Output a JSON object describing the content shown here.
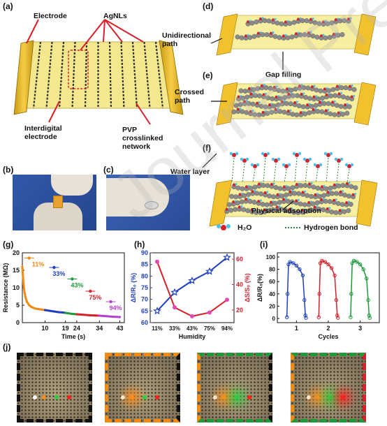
{
  "panels": {
    "a": "(a)",
    "b": "(b)",
    "c": "(c)",
    "d": "(d)",
    "e": "(e)",
    "f": "(f)",
    "g": "(g)",
    "h": "(h)",
    "i": "(i)",
    "j": "(j)"
  },
  "panel_a": {
    "electrode": "Electrode",
    "agnls": "AgNLs",
    "interdigital": "Interdigital electrode",
    "pvp": "PVP crosslinked network"
  },
  "panel_d": {
    "unidirectional": "Unidirectional path",
    "gap": "Gap filling"
  },
  "panel_e": {
    "crossed": "Crossed path"
  },
  "panel_f": {
    "water": "Water layer",
    "physical": "Physical adsorption"
  },
  "legend": {
    "h2o": "H₂O",
    "hbond": "Hydrogen bond"
  },
  "watermark": "Journal Pre-proof",
  "colors": {
    "gold": "#f2c12e",
    "film": "#f7efa0",
    "blue": "#1f3fbf",
    "red": "#d6202a",
    "green": "#1e9a3a",
    "orange": "#f08a10",
    "purple": "#b040d0"
  },
  "chart_data": [
    {
      "type": "line",
      "panel": "g",
      "ylabel": "Resistance (MΩ)",
      "xlabel": "Time (s)",
      "ylim": [
        0,
        20
      ],
      "yticks": [
        "0",
        "5",
        "10",
        "15",
        "20"
      ],
      "xticks": [
        "10",
        "19",
        "24",
        "34",
        "43"
      ],
      "annotations": [
        "11%",
        "33%",
        "43%",
        "75%",
        "94%"
      ],
      "series": [
        {
          "name": "11%",
          "color": "#f08a10",
          "x": [
            0,
            0.5,
            1,
            1.5,
            2,
            3,
            4,
            5,
            6,
            7,
            8,
            9,
            10
          ],
          "y": [
            16,
            11,
            8.5,
            7,
            6,
            5,
            4.5,
            4.2,
            4,
            3.9,
            3.8,
            3.7,
            3.6
          ]
        },
        {
          "name": "33%",
          "color": "#1f3fbf",
          "x": [
            10,
            12,
            14,
            16,
            18,
            19
          ],
          "y": [
            3.6,
            3.4,
            3.2,
            3.0,
            2.9,
            2.8
          ]
        },
        {
          "name": "43%",
          "color": "#1e9a3a",
          "x": [
            19,
            20,
            21,
            22,
            23,
            24
          ],
          "y": [
            2.8,
            2.7,
            2.6,
            2.5,
            2.45,
            2.4
          ]
        },
        {
          "name": "75%",
          "color": "#d6202a",
          "x": [
            24,
            26,
            28,
            30,
            32,
            34
          ],
          "y": [
            2.4,
            2.3,
            2.2,
            2.1,
            2.05,
            2.0
          ]
        },
        {
          "name": "94%",
          "color": "#b040d0",
          "x": [
            34,
            36,
            38,
            40,
            43
          ],
          "y": [
            2.0,
            1.9,
            1.8,
            1.7,
            1.6
          ]
        }
      ]
    },
    {
      "type": "line",
      "panel": "h",
      "xlabel": "Humidity",
      "ylabel_left": "ΔR/R₀ (%)",
      "ylabel_right": "ΔS/S₀ (%)",
      "categories": [
        "11%",
        "33%",
        "43%",
        "75%",
        "94%"
      ],
      "ylim_left": [
        60,
        90
      ],
      "yticks_left": [
        "60",
        "65",
        "70",
        "75",
        "80",
        "85",
        "90"
      ],
      "ylim_right": [
        10,
        65
      ],
      "yticks_right": [
        "20",
        "40",
        "60"
      ],
      "series": [
        {
          "name": "ΔR/R₀",
          "axis": "left",
          "color": "#1f3fbf",
          "values": [
            65,
            73,
            78,
            82,
            88
          ]
        },
        {
          "name": "ΔS/S₀",
          "axis": "right",
          "color": "#d6202a",
          "values": [
            58,
            22,
            15,
            18,
            28
          ]
        }
      ]
    },
    {
      "type": "line",
      "panel": "i",
      "xlabel": "Cycles",
      "ylabel": "ΔR/R₀(%)",
      "ylim": [
        0,
        100
      ],
      "yticks": [
        "0",
        "20",
        "40",
        "60",
        "80",
        "100"
      ],
      "xticks": [
        "1",
        "2",
        "3"
      ],
      "series": [
        {
          "color": "#1f3fbf",
          "x": [
            0.7,
            0.72,
            0.75,
            0.8,
            0.9,
            1.0,
            1.1,
            1.2,
            1.25,
            1.28,
            1.3
          ],
          "y": [
            2,
            40,
            88,
            92,
            90,
            86,
            80,
            70,
            30,
            5,
            1
          ]
        },
        {
          "color": "#d6202a",
          "x": [
            1.7,
            1.72,
            1.75,
            1.8,
            1.9,
            2.0,
            2.1,
            2.2,
            2.25,
            2.28,
            2.3
          ],
          "y": [
            2,
            40,
            90,
            94,
            92,
            88,
            82,
            70,
            30,
            5,
            1
          ]
        },
        {
          "color": "#1e9a3a",
          "x": [
            2.7,
            2.72,
            2.75,
            2.8,
            2.9,
            3.0,
            3.1,
            3.2,
            3.25,
            3.28,
            3.3
          ],
          "y": [
            2,
            40,
            90,
            94,
            92,
            88,
            80,
            65,
            30,
            5,
            1
          ]
        }
      ]
    }
  ]
}
